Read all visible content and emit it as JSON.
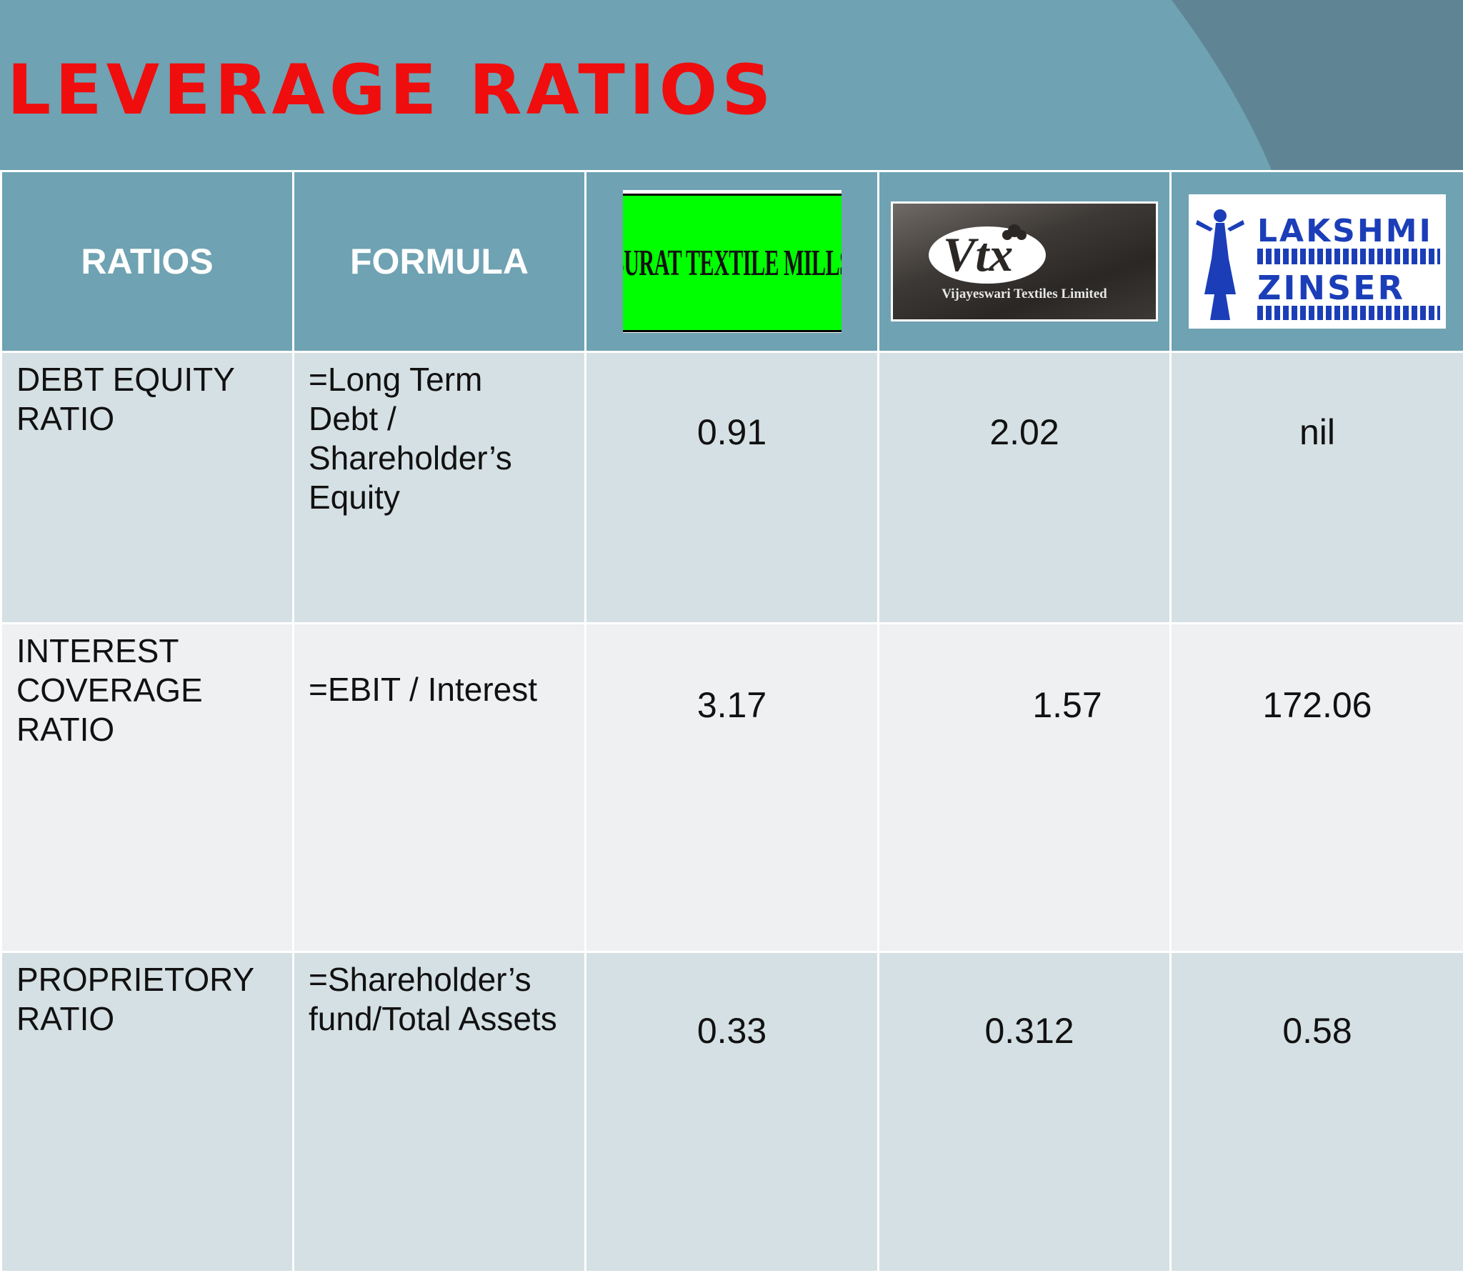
{
  "slide": {
    "title": "LEVERAGE RATIOS"
  },
  "colors": {
    "background": "#6fa2b2",
    "title": "#f00d0d",
    "row_dark": "#d5e0e4",
    "row_light": "#eef0f2"
  },
  "table": {
    "headers": {
      "ratios": "RATIOS",
      "formula": "FORMULA"
    },
    "companies": [
      {
        "logo_text": "SURAT TEXTILE MILLS",
        "logo_icon": "surat-logo"
      },
      {
        "logo_text": "Vtx",
        "logo_caption": "Vijayeswari Textiles Limited",
        "logo_icon": "vtx-logo"
      },
      {
        "logo_text_line1": "LAKSHMI",
        "logo_text_line2": "ZINSER",
        "logo_icon": "lakshmi-logo"
      }
    ],
    "rows": [
      {
        "ratio_lines": [
          "DEBT EQUITY",
          "RATIO"
        ],
        "formula_lines": [
          "=Long Term",
          "Debt /",
          "Shareholder’s",
          "Equity"
        ],
        "values": [
          "0.91",
          "2.02",
          "nil"
        ]
      },
      {
        "ratio_lines": [
          "INTEREST",
          "COVERAGE",
          "RATIO"
        ],
        "formula_lines": [
          "=EBIT / Interest"
        ],
        "values": [
          "3.17",
          "1.57",
          "172.06"
        ]
      },
      {
        "ratio_lines": [
          "PROPRIETORY",
          "RATIO"
        ],
        "formula_lines": [
          "=Shareholder’s",
          "fund/Total Assets"
        ],
        "values": [
          "0.33",
          "0.312",
          "0.58"
        ]
      }
    ]
  }
}
